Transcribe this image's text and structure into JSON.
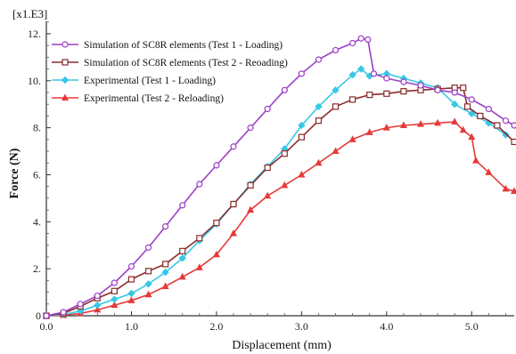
{
  "chart_data": {
    "type": "line",
    "multiplier_label": "[x1.E3]",
    "xlabel": "Displacement (mm)",
    "ylabel": "Force (N)",
    "xlim": [
      0,
      5.5
    ],
    "ylim": [
      0,
      12.3
    ],
    "x_ticks": [
      "0.0",
      "1.0",
      "2.0",
      "3.0",
      "4.0",
      "5.0"
    ],
    "y_ticks": [
      "0",
      "2.",
      "4.",
      "6.",
      "8.",
      "10.",
      "12."
    ],
    "grid": false,
    "legend_position": "top-left",
    "series": [
      {
        "name": "Simulation of SC8R elements (Test 1 - Loading)",
        "color": "#9b3fc6",
        "marker": "circle",
        "points": [
          [
            0,
            0
          ],
          [
            0.2,
            0.15
          ],
          [
            0.4,
            0.5
          ],
          [
            0.6,
            0.85
          ],
          [
            0.8,
            1.4
          ],
          [
            1.0,
            2.1
          ],
          [
            1.2,
            2.9
          ],
          [
            1.4,
            3.8
          ],
          [
            1.6,
            4.7
          ],
          [
            1.8,
            5.6
          ],
          [
            2.0,
            6.4
          ],
          [
            2.2,
            7.2
          ],
          [
            2.4,
            8.0
          ],
          [
            2.6,
            8.8
          ],
          [
            2.8,
            9.6
          ],
          [
            3.0,
            10.3
          ],
          [
            3.2,
            10.9
          ],
          [
            3.4,
            11.3
          ],
          [
            3.6,
            11.6
          ],
          [
            3.7,
            11.8
          ],
          [
            3.78,
            11.75
          ],
          [
            3.85,
            10.3
          ],
          [
            4.0,
            10.1
          ],
          [
            4.2,
            9.95
          ],
          [
            4.4,
            9.8
          ],
          [
            4.6,
            9.6
          ],
          [
            4.8,
            9.5
          ],
          [
            5.0,
            9.2
          ],
          [
            5.2,
            8.8
          ],
          [
            5.4,
            8.3
          ],
          [
            5.5,
            8.1
          ]
        ]
      },
      {
        "name": "Simulation of SC8R elements (Test 2 - Reoading)",
        "color": "#8b2a2a",
        "marker": "square",
        "points": [
          [
            0,
            0
          ],
          [
            0.2,
            0.1
          ],
          [
            0.4,
            0.4
          ],
          [
            0.6,
            0.75
          ],
          [
            0.8,
            1.05
          ],
          [
            1.0,
            1.55
          ],
          [
            1.2,
            1.9
          ],
          [
            1.4,
            2.2
          ],
          [
            1.6,
            2.75
          ],
          [
            1.8,
            3.3
          ],
          [
            2.0,
            3.95
          ],
          [
            2.2,
            4.75
          ],
          [
            2.4,
            5.55
          ],
          [
            2.6,
            6.3
          ],
          [
            2.8,
            6.9
          ],
          [
            3.0,
            7.6
          ],
          [
            3.2,
            8.3
          ],
          [
            3.4,
            8.9
          ],
          [
            3.6,
            9.2
          ],
          [
            3.8,
            9.4
          ],
          [
            4.0,
            9.45
          ],
          [
            4.2,
            9.55
          ],
          [
            4.4,
            9.6
          ],
          [
            4.6,
            9.65
          ],
          [
            4.8,
            9.7
          ],
          [
            4.9,
            9.7
          ],
          [
            4.95,
            8.9
          ],
          [
            5.1,
            8.5
          ],
          [
            5.3,
            8.1
          ],
          [
            5.5,
            7.4
          ]
        ]
      },
      {
        "name": "Experimental (Test 1 - Loading)",
        "color": "#38c8e6",
        "marker": "diamond",
        "points": [
          [
            0,
            0
          ],
          [
            0.2,
            0.05
          ],
          [
            0.4,
            0.2
          ],
          [
            0.6,
            0.45
          ],
          [
            0.8,
            0.7
          ],
          [
            1.0,
            0.95
          ],
          [
            1.2,
            1.35
          ],
          [
            1.4,
            1.85
          ],
          [
            1.6,
            2.45
          ],
          [
            1.8,
            3.2
          ],
          [
            2.0,
            3.9
          ],
          [
            2.2,
            4.75
          ],
          [
            2.4,
            5.6
          ],
          [
            2.6,
            6.35
          ],
          [
            2.8,
            7.1
          ],
          [
            3.0,
            8.1
          ],
          [
            3.2,
            8.9
          ],
          [
            3.4,
            9.6
          ],
          [
            3.6,
            10.25
          ],
          [
            3.7,
            10.5
          ],
          [
            3.8,
            10.2
          ],
          [
            4.0,
            10.3
          ],
          [
            4.2,
            10.1
          ],
          [
            4.4,
            9.9
          ],
          [
            4.6,
            9.7
          ],
          [
            4.8,
            9.0
          ],
          [
            5.0,
            8.6
          ],
          [
            5.2,
            8.2
          ],
          [
            5.4,
            7.7
          ]
        ]
      },
      {
        "name": "Experimental (Test 2 - Reloading)",
        "color": "#e53b3b",
        "marker": "triangle",
        "points": [
          [
            0,
            0
          ],
          [
            0.2,
            0.02
          ],
          [
            0.4,
            0.1
          ],
          [
            0.6,
            0.25
          ],
          [
            0.8,
            0.45
          ],
          [
            1.0,
            0.65
          ],
          [
            1.2,
            0.9
          ],
          [
            1.4,
            1.25
          ],
          [
            1.6,
            1.65
          ],
          [
            1.8,
            2.05
          ],
          [
            2.0,
            2.6
          ],
          [
            2.2,
            3.5
          ],
          [
            2.4,
            4.5
          ],
          [
            2.6,
            5.1
          ],
          [
            2.8,
            5.55
          ],
          [
            3.0,
            6.0
          ],
          [
            3.2,
            6.5
          ],
          [
            3.4,
            7.0
          ],
          [
            3.6,
            7.5
          ],
          [
            3.8,
            7.8
          ],
          [
            4.0,
            8.0
          ],
          [
            4.2,
            8.1
          ],
          [
            4.4,
            8.15
          ],
          [
            4.6,
            8.2
          ],
          [
            4.8,
            8.25
          ],
          [
            4.9,
            7.9
          ],
          [
            5.0,
            7.6
          ],
          [
            5.05,
            6.6
          ],
          [
            5.2,
            6.1
          ],
          [
            5.4,
            5.4
          ],
          [
            5.5,
            5.3
          ]
        ]
      }
    ]
  }
}
